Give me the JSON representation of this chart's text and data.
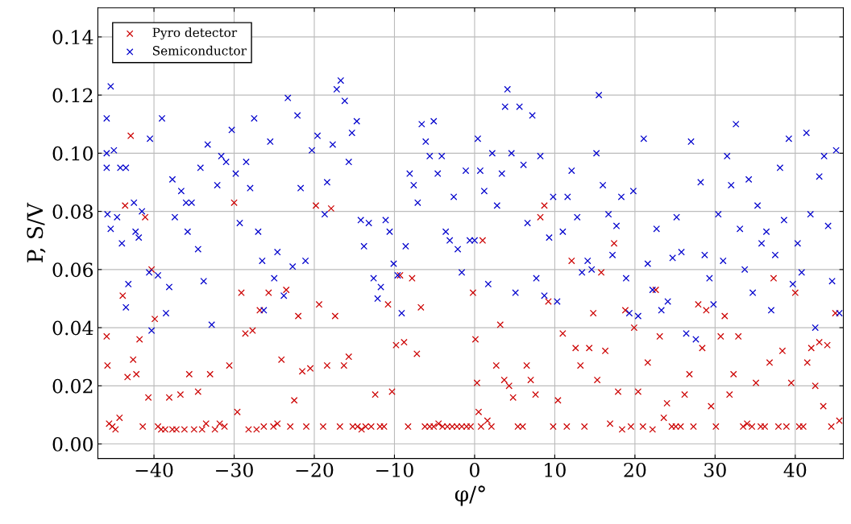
{
  "chart_data": {
    "type": "scatter",
    "xlabel": "φ/°",
    "ylabel": "P, S/V",
    "xlim": [
      -47,
      46
    ],
    "ylim": [
      -0.005,
      0.15
    ],
    "xticks": [
      {
        "value": -40,
        "label": "−40"
      },
      {
        "value": -30,
        "label": "−30"
      },
      {
        "value": -20,
        "label": "−20"
      },
      {
        "value": -10,
        "label": "−10"
      },
      0,
      10,
      20,
      30,
      40
    ],
    "yticks": [
      {
        "value": 0,
        "label": "0.00"
      },
      {
        "value": 0.02,
        "label": "0.02"
      },
      {
        "value": 0.04,
        "label": "0.04"
      },
      {
        "value": 0.06,
        "label": "0.06"
      },
      {
        "value": 0.08,
        "label": "0.08"
      },
      {
        "value": 0.1,
        "label": "0.10"
      },
      {
        "value": 0.12,
        "label": "0.12"
      },
      {
        "value": 0.14,
        "label": "0.14"
      }
    ],
    "grid": true,
    "legend": "top left",
    "marker": "cross",
    "series": [
      {
        "name": "Pyro detector",
        "color": "#cc0000",
        "x": [
          -45.9,
          -45.8,
          -45.6,
          -45.2,
          -44.8,
          -44.3,
          -43.9,
          -43.6,
          -43.3,
          -42.9,
          -42.6,
          -42.2,
          -41.8,
          -41.4,
          -41.1,
          -40.7,
          -40.3,
          -39.9,
          -39.5,
          -39.1,
          -38.6,
          -38.1,
          -37.7,
          -37.2,
          -36.7,
          -36.2,
          -35.6,
          -35,
          -34.5,
          -34,
          -33.5,
          -33,
          -32.4,
          -31.8,
          -31.2,
          -30.6,
          -30,
          -29.6,
          -29.1,
          -28.6,
          -28.2,
          -27.7,
          -27.2,
          -26.8,
          -26.3,
          -25.7,
          -25.1,
          -24.6,
          -24.1,
          -23.5,
          -23,
          -22.5,
          -22,
          -21.5,
          -21,
          -20.5,
          -19.8,
          -19.4,
          -18.9,
          -18.4,
          -17.9,
          -17.4,
          -16.8,
          -16.3,
          -15.7,
          -15.2,
          -14.6,
          -14.1,
          -13.6,
          -12.9,
          -12.4,
          -11.8,
          -11.3,
          -10.8,
          -10.3,
          -9.8,
          -9.3,
          -8.8,
          -8.3,
          -7.8,
          -7.2,
          -6.7,
          -6.2,
          -5.6,
          -5.1,
          -4.5,
          -4,
          -3.4,
          -2.8,
          -2.2,
          -1.6,
          -1,
          -0.5,
          -0.2,
          0.1,
          0.3,
          0.5,
          0.8,
          1.0,
          1.6,
          2.1,
          2.7,
          3.2,
          3.7,
          4.3,
          4.8,
          5.4,
          6.0,
          6.5,
          7.0,
          7.6,
          8.2,
          8.7,
          9.2,
          9.8,
          10.4,
          11,
          11.5,
          12.1,
          12.6,
          13.2,
          13.7,
          14.3,
          14.8,
          15.3,
          15.8,
          16.3,
          16.9,
          17.4,
          17.9,
          18.4,
          18.8,
          19.5,
          19.9,
          20.4,
          21,
          21.6,
          22.2,
          22.6,
          23.1,
          23.6,
          24.0,
          24.6,
          25.1,
          25.7,
          26.2,
          26.8,
          27.3,
          27.9,
          28.4,
          28.9,
          29.5,
          30.1,
          30.7,
          31.2,
          31.8,
          32.3,
          32.9,
          33.5,
          34,
          34.6,
          35.1,
          35.7,
          36.2,
          36.8,
          37.3,
          37.9,
          38.4,
          38.9,
          39.5,
          40,
          40.5,
          41,
          41.5,
          42,
          42.5,
          43,
          43.5,
          44,
          44.5,
          45,
          45.5
        ],
        "values": [
          0.037,
          0.027,
          0.007,
          0.006,
          0.005,
          0.009,
          0.051,
          0.082,
          0.023,
          0.106,
          0.029,
          0.024,
          0.036,
          0.006,
          0.078,
          0.016,
          0.06,
          0.043,
          0.006,
          0.005,
          0.005,
          0.016,
          0.005,
          0.005,
          0.017,
          0.005,
          0.024,
          0.005,
          0.018,
          0.005,
          0.007,
          0.024,
          0.005,
          0.007,
          0.006,
          0.027,
          0.083,
          0.011,
          0.052,
          0.038,
          0.005,
          0.039,
          0.005,
          0.046,
          0.006,
          0.052,
          0.006,
          0.007,
          0.029,
          0.053,
          0.006,
          0.015,
          0.044,
          0.025,
          0.006,
          0.026,
          0.082,
          0.048,
          0.006,
          0.027,
          0.081,
          0.044,
          0.006,
          0.027,
          0.03,
          0.006,
          0.006,
          0.005,
          0.006,
          0.006,
          0.017,
          0.006,
          0.006,
          0.048,
          0.018,
          0.034,
          0.058,
          0.035,
          0.006,
          0.057,
          0.031,
          0.047,
          0.006,
          0.006,
          0.006,
          0.007,
          0.006,
          0.006,
          0.006,
          0.006,
          0.006,
          0.006,
          0.006,
          0.052,
          0.036,
          0.021,
          0.011,
          0.006,
          0.07,
          0.008,
          0.006,
          0.027,
          0.041,
          0.022,
          0.02,
          0.016,
          0.006,
          0.006,
          0.027,
          0.022,
          0.017,
          0.078,
          0.082,
          0.049,
          0.006,
          0.015,
          0.038,
          0.006,
          0.063,
          0.033,
          0.027,
          0.006,
          0.033,
          0.045,
          0.022,
          0.059,
          0.032,
          0.007,
          0.069,
          0.018,
          0.005,
          0.046,
          0.006,
          0.04,
          0.018,
          0.006,
          0.028,
          0.005,
          0.053,
          0.037,
          0.009,
          0.014,
          0.006,
          0.006,
          0.006,
          0.017,
          0.024,
          0.006,
          0.048,
          0.033,
          0.046,
          0.013,
          0.006,
          0.037,
          0.044,
          0.017,
          0.024,
          0.037,
          0.006,
          0.007,
          0.006,
          0.021,
          0.006,
          0.006,
          0.028,
          0.057,
          0.006,
          0.032,
          0.006,
          0.021,
          0.052,
          0.006,
          0.006,
          0.028,
          0.033,
          0.02,
          0.035,
          0.013,
          0.034,
          0.006,
          0.045,
          0.008
        ]
      },
      {
        "name": "Semiconductor",
        "color": "#0000cc",
        "x": [
          -45.9,
          -45.4,
          -45.9,
          -45.9,
          -45.8,
          -45.4,
          -45,
          -44.6,
          -44.2,
          -44,
          -43.5,
          -43.2,
          -43.5,
          -42.5,
          -42.3,
          -41.9,
          -41.5,
          -40.6,
          -40.3,
          -40.5,
          -39.5,
          -39,
          -38.5,
          -38.1,
          -37.7,
          -37.4,
          -36.6,
          -36,
          -35.8,
          -35.3,
          -34.5,
          -34.2,
          -33.8,
          -33.3,
          -32.8,
          -32.1,
          -31.6,
          -31,
          -30.3,
          -29.8,
          -29.3,
          -28.5,
          -28,
          -27.5,
          -27,
          -26.5,
          -26.3,
          -25.5,
          -25,
          -24.6,
          -23.8,
          -23.3,
          -22.7,
          -22.1,
          -21.7,
          -21.1,
          -20.3,
          -19.6,
          -18.7,
          -18.4,
          -17.7,
          -17.2,
          -16.7,
          -16.2,
          -15.7,
          -15.3,
          -14.7,
          -14.2,
          -13.8,
          -13.2,
          -12.6,
          -12.1,
          -11.7,
          -11.1,
          -10.6,
          -10.1,
          -9.6,
          -9.1,
          -8.6,
          -8.1,
          -7.6,
          -7.1,
          -6.6,
          -6.1,
          -5.6,
          -5.1,
          -4.6,
          -4.1,
          -3.6,
          -3.1,
          -2.6,
          -2.1,
          -1.6,
          -1.1,
          -0.6,
          0,
          0.4,
          0.7,
          1.2,
          1.7,
          2.2,
          2.8,
          3.4,
          3.8,
          4.1,
          4.6,
          5.1,
          5.6,
          6.1,
          6.6,
          7.2,
          7.7,
          8.2,
          8.7,
          9.3,
          9.8,
          10.3,
          11,
          11.6,
          12.1,
          12.8,
          13.4,
          14.1,
          14.6,
          15.2,
          15.5,
          16,
          16.7,
          17.2,
          17.7,
          18.3,
          18.9,
          19.3,
          19.8,
          20.4,
          21.1,
          21.6,
          22.2,
          22.7,
          23.3,
          24.1,
          24.7,
          25.2,
          25.8,
          26.4,
          27,
          27.6,
          28.2,
          28.7,
          29.3,
          29.8,
          30.4,
          31,
          31.5,
          32,
          32.6,
          33.1,
          33.7,
          34.2,
          34.7,
          35.3,
          35.8,
          36.4,
          37,
          37.5,
          38.1,
          38.6,
          39.2,
          39.7,
          40.3,
          40.8,
          41.4,
          41.9,
          42.5,
          43,
          43.6,
          44.1,
          44.6,
          45.1,
          45.5
        ],
        "values": [
          0.112,
          0.123,
          0.1,
          0.095,
          0.079,
          0.074,
          0.101,
          0.078,
          0.095,
          0.069,
          0.095,
          0.055,
          0.047,
          0.083,
          0.073,
          0.071,
          0.08,
          0.059,
          0.039,
          0.105,
          0.058,
          0.112,
          0.045,
          0.054,
          0.091,
          0.078,
          0.087,
          0.083,
          0.073,
          0.083,
          0.067,
          0.095,
          0.056,
          0.103,
          0.041,
          0.089,
          0.099,
          0.097,
          0.108,
          0.093,
          0.076,
          0.097,
          0.088,
          0.112,
          0.073,
          0.063,
          0.046,
          0.104,
          0.057,
          0.066,
          0.051,
          0.119,
          0.061,
          0.113,
          0.088,
          0.063,
          0.101,
          0.106,
          0.079,
          0.09,
          0.103,
          0.122,
          0.125,
          0.118,
          0.097,
          0.107,
          0.111,
          0.077,
          0.068,
          0.076,
          0.057,
          0.05,
          0.054,
          0.077,
          0.073,
          0.062,
          0.058,
          0.045,
          0.068,
          0.093,
          0.089,
          0.083,
          0.11,
          0.104,
          0.099,
          0.111,
          0.093,
          0.099,
          0.073,
          0.07,
          0.085,
          0.067,
          0.059,
          0.094,
          0.07,
          0.07,
          0.105,
          0.094,
          0.087,
          0.055,
          0.1,
          0.082,
          0.093,
          0.116,
          0.122,
          0.1,
          0.052,
          0.116,
          0.096,
          0.076,
          0.113,
          0.057,
          0.099,
          0.051,
          0.071,
          0.085,
          0.049,
          0.073,
          0.085,
          0.094,
          0.078,
          0.059,
          0.063,
          0.06,
          0.1,
          0.12,
          0.089,
          0.079,
          0.065,
          0.075,
          0.085,
          0.057,
          0.045,
          0.087,
          0.044,
          0.105,
          0.062,
          0.053,
          0.074,
          0.046,
          0.049,
          0.064,
          0.078,
          0.066,
          0.038,
          0.104,
          0.036,
          0.09,
          0.065,
          0.057,
          0.048,
          0.079,
          0.063,
          0.099,
          0.089,
          0.11,
          0.074,
          0.06,
          0.091,
          0.052,
          0.082,
          0.069,
          0.073,
          0.046,
          0.065,
          0.095,
          0.077,
          0.105,
          0.055,
          0.069,
          0.059,
          0.107,
          0.079,
          0.04,
          0.092,
          0.099,
          0.075,
          0.056,
          0.101,
          0.045
        ]
      }
    ]
  }
}
